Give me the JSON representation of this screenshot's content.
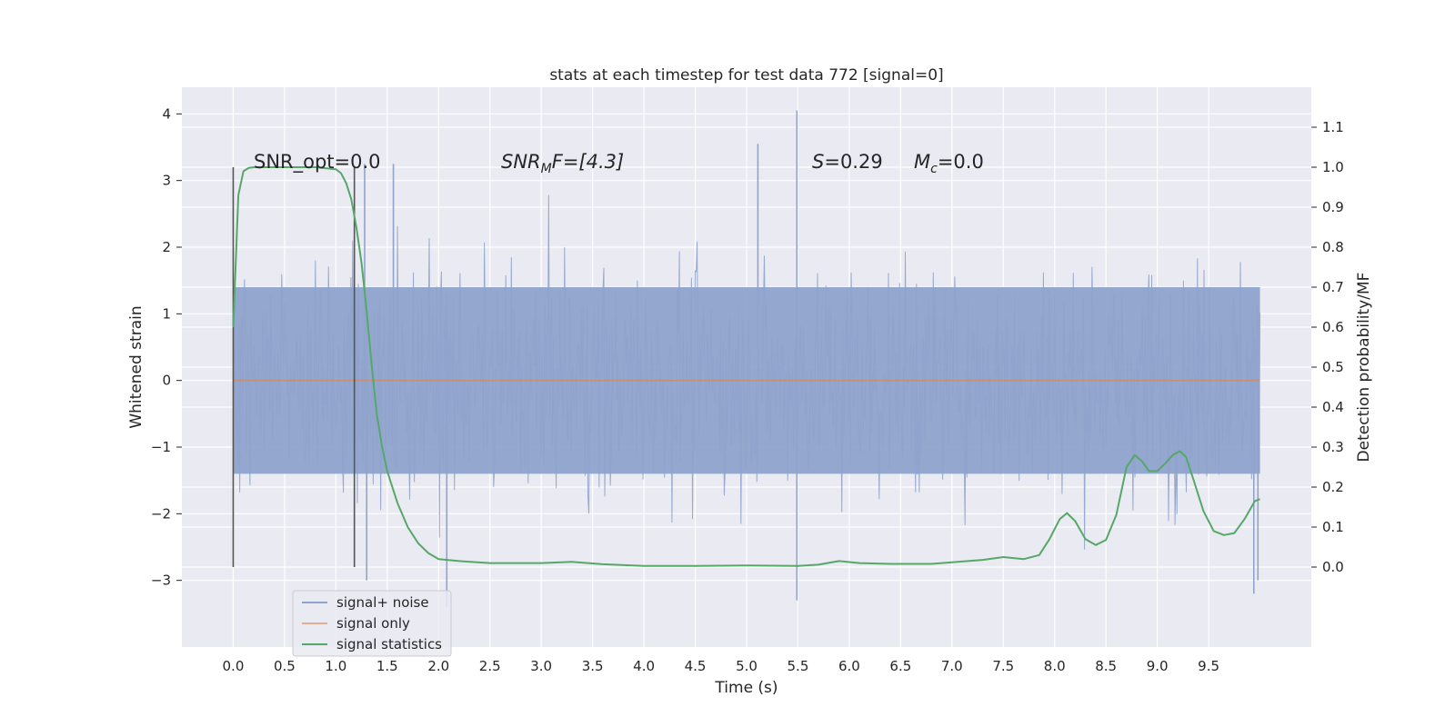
{
  "chart_data": {
    "type": "line",
    "title": "stats at each timestep for test data 772 [signal=0]",
    "xlabel": "Time (s)",
    "ylabel": "Whitened strain",
    "ylabel_right": "Detection probability/MF",
    "xlim": [
      -0.5,
      10.5
    ],
    "ylim": [
      -4.0,
      4.4
    ],
    "ylim_right": [
      -0.2,
      1.2
    ],
    "x_ticks": [
      0.0,
      0.5,
      1.0,
      1.5,
      2.0,
      2.5,
      3.0,
      3.5,
      4.0,
      4.5,
      5.0,
      5.5,
      6.0,
      6.5,
      7.0,
      7.5,
      8.0,
      8.5,
      9.0,
      9.5
    ],
    "x_tick_labels": [
      "0.0",
      "0.5",
      "1.0",
      "1.5",
      "2.0",
      "2.5",
      "3.0",
      "3.5",
      "4.0",
      "4.5",
      "5.0",
      "5.5",
      "6.0",
      "6.5",
      "7.0",
      "7.5",
      "8.0",
      "8.5",
      "9.0",
      "9.5"
    ],
    "y_ticks": [
      -3,
      -2,
      -1,
      0,
      1,
      2,
      3,
      4
    ],
    "y_tick_labels": [
      "−3",
      "−2",
      "−1",
      "0",
      "1",
      "2",
      "3",
      "4"
    ],
    "y_right_ticks": [
      0.0,
      0.1,
      0.2,
      0.3,
      0.4,
      0.5,
      0.6,
      0.7,
      0.8,
      0.9,
      1.0,
      1.1
    ],
    "y_right_tick_labels": [
      "0.0",
      "0.1",
      "0.2",
      "0.3",
      "0.4",
      "0.5",
      "0.6",
      "0.7",
      "0.8",
      "0.9",
      "1.0",
      "1.1"
    ],
    "grid": true,
    "legend_position": "lower-left",
    "series": [
      {
        "name": "signal+ noise",
        "axis": "left",
        "color": "#8fa3cc",
        "noise_band": [
          -1.4,
          1.4
        ],
        "notable_peaks": [
          {
            "x": 1.28,
            "y": 3.25
          },
          {
            "x": 1.56,
            "y": 3.25
          },
          {
            "x": 5.11,
            "y": 3.55
          },
          {
            "x": 5.49,
            "y": 4.05
          },
          {
            "x": 5.49,
            "y": -3.3
          },
          {
            "x": 9.94,
            "y": -3.2
          },
          {
            "x": 9.98,
            "y": -3.0
          },
          {
            "x": 1.3,
            "y": -3.0
          },
          {
            "x": 2.08,
            "y": -3.4
          }
        ]
      },
      {
        "name": "signal only",
        "axis": "left",
        "color": "#dd8452",
        "x": [
          0.0,
          10.0
        ],
        "y": [
          0.0,
          0.0
        ]
      },
      {
        "name": "signal statistics",
        "axis": "right",
        "color": "#55a868",
        "x": [
          0.0,
          0.05,
          0.1,
          0.15,
          0.2,
          0.3,
          0.5,
          0.8,
          1.0,
          1.05,
          1.1,
          1.15,
          1.2,
          1.25,
          1.3,
          1.35,
          1.4,
          1.45,
          1.5,
          1.6,
          1.7,
          1.8,
          1.9,
          2.0,
          2.2,
          2.5,
          3.0,
          3.3,
          3.6,
          4.0,
          4.5,
          5.0,
          5.5,
          5.7,
          5.9,
          6.1,
          6.4,
          6.8,
          7.0,
          7.3,
          7.5,
          7.7,
          7.85,
          7.95,
          8.05,
          8.12,
          8.2,
          8.3,
          8.4,
          8.5,
          8.6,
          8.7,
          8.78,
          8.85,
          8.92,
          9.0,
          9.08,
          9.15,
          9.22,
          9.28,
          9.35,
          9.45,
          9.55,
          9.65,
          9.75,
          9.85,
          9.95,
          10.0
        ],
        "y": [
          0.6,
          0.93,
          0.99,
          0.998,
          1.0,
          1.0,
          1.0,
          1.0,
          0.995,
          0.985,
          0.96,
          0.92,
          0.85,
          0.76,
          0.64,
          0.5,
          0.38,
          0.3,
          0.24,
          0.16,
          0.1,
          0.06,
          0.035,
          0.02,
          0.015,
          0.01,
          0.01,
          0.013,
          0.007,
          0.003,
          0.003,
          0.004,
          0.003,
          0.006,
          0.015,
          0.01,
          0.008,
          0.008,
          0.012,
          0.018,
          0.025,
          0.02,
          0.03,
          0.07,
          0.12,
          0.135,
          0.115,
          0.07,
          0.055,
          0.068,
          0.13,
          0.25,
          0.28,
          0.265,
          0.24,
          0.24,
          0.26,
          0.28,
          0.29,
          0.275,
          0.22,
          0.14,
          0.09,
          0.08,
          0.085,
          0.12,
          0.165,
          0.17
        ]
      }
    ],
    "vlines": [
      {
        "x": 0.0,
        "y_from": -2.8,
        "y_to": 3.2
      },
      {
        "x": 1.18,
        "y_from": -2.8,
        "y_to": 3.2
      }
    ],
    "annotations": [
      {
        "id": "snr-opt",
        "text": "SNR_opt=0.0"
      },
      {
        "id": "snr-mf",
        "prefix": "SNR",
        "sub": "M",
        "suffix": "F=[4.3]"
      },
      {
        "id": "s",
        "prefix": "S",
        "suffix": "=0.29"
      },
      {
        "id": "mc",
        "prefix": "M",
        "sub": "c",
        "suffix": "=0.0"
      }
    ]
  }
}
